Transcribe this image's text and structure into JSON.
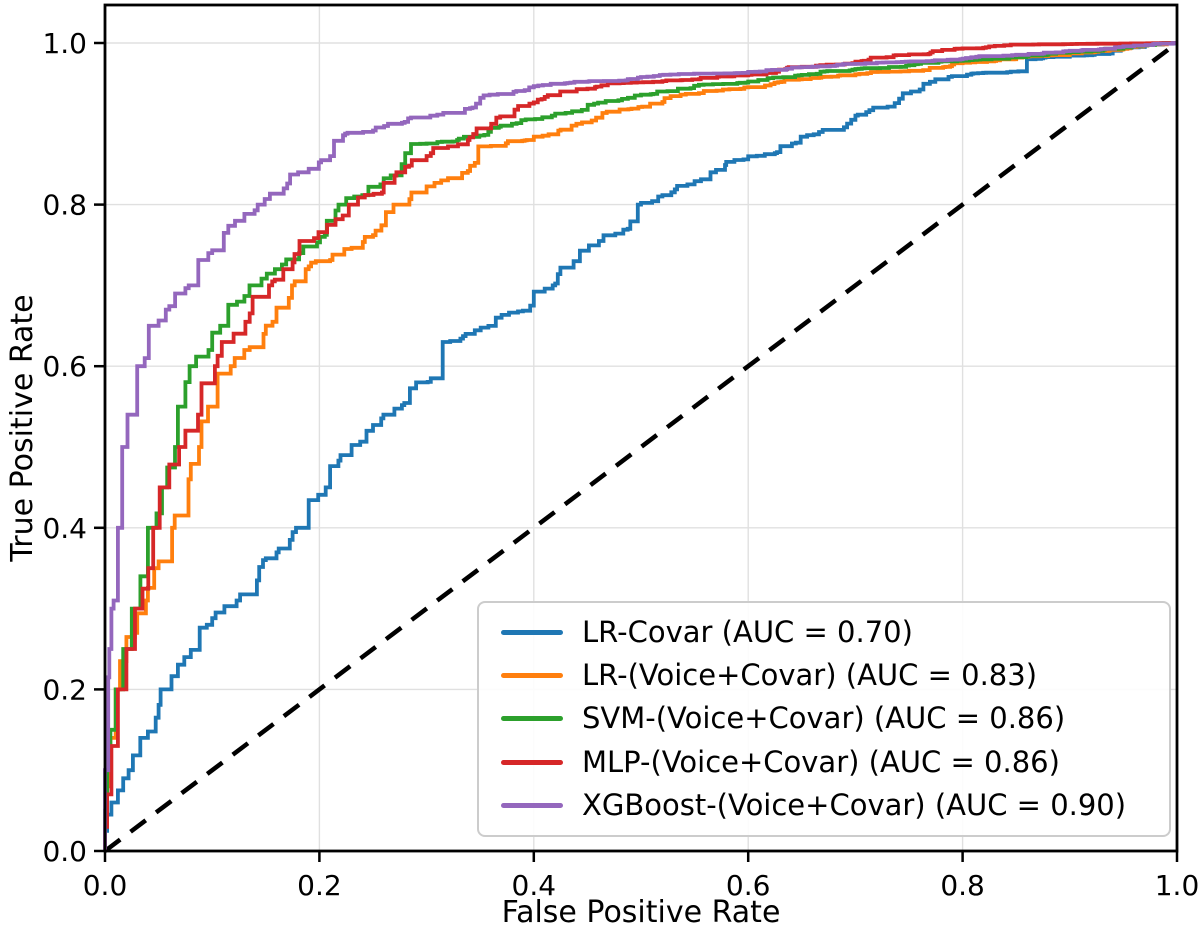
{
  "figure": {
    "background": "#ffffff",
    "text_color": "#000000",
    "grid_color": "#e0e0e0",
    "spine_color": "#000000"
  },
  "chart_data": {
    "type": "line",
    "subtype": "roc",
    "title": "",
    "xlabel": "False Positive Rate",
    "ylabel": "True Positive Rate",
    "xlim": [
      0.0,
      1.0
    ],
    "ylim": [
      0.0,
      1.05
    ],
    "grid": true,
    "legend_position": "lower right",
    "x_ticks": [
      "0.0",
      "0.2",
      "0.4",
      "0.6",
      "0.8",
      "1.0"
    ],
    "y_ticks": [
      "0.0",
      "0.2",
      "0.4",
      "0.6",
      "0.8",
      "1.0"
    ],
    "diagonal": {
      "from": [
        0,
        0
      ],
      "to": [
        1,
        1
      ],
      "style": "dashed",
      "color": "#000000"
    },
    "series": [
      {
        "name": "LR-Covar",
        "legend_label": "LR-Covar (AUC = 0.70)",
        "auc": 0.7,
        "color": "#1f77b4",
        "points": [
          [
            0,
            0
          ],
          [
            0.002,
            0.025
          ],
          [
            0.006,
            0.045
          ],
          [
            0.012,
            0.06
          ],
          [
            0.017,
            0.075
          ],
          [
            0.022,
            0.09
          ],
          [
            0.026,
            0.1
          ],
          [
            0.04,
            0.14
          ],
          [
            0.05,
            0.165
          ],
          [
            0.062,
            0.2
          ],
          [
            0.08,
            0.24
          ],
          [
            0.1,
            0.28
          ],
          [
            0.126,
            0.31
          ],
          [
            0.15,
            0.36
          ],
          [
            0.175,
            0.385
          ],
          [
            0.19,
            0.4
          ],
          [
            0.21,
            0.45
          ],
          [
            0.23,
            0.49
          ],
          [
            0.25,
            0.52
          ],
          [
            0.27,
            0.54
          ],
          [
            0.301,
            0.58
          ],
          [
            0.315,
            0.585
          ],
          [
            0.322,
            0.63
          ],
          [
            0.345,
            0.64
          ],
          [
            0.37,
            0.66
          ],
          [
            0.4,
            0.675
          ],
          [
            0.42,
            0.7
          ],
          [
            0.443,
            0.73
          ],
          [
            0.465,
            0.755
          ],
          [
            0.49,
            0.77
          ],
          [
            0.5,
            0.8
          ],
          [
            0.52,
            0.81
          ],
          [
            0.55,
            0.825
          ],
          [
            0.57,
            0.84
          ],
          [
            0.6,
            0.856
          ],
          [
            0.63,
            0.865
          ],
          [
            0.666,
            0.887
          ],
          [
            0.7,
            0.905
          ],
          [
            0.73,
            0.92
          ],
          [
            0.76,
            0.94
          ],
          [
            0.79,
            0.958
          ],
          [
            0.81,
            0.962
          ],
          [
            0.86,
            0.965
          ],
          [
            0.868,
            0.98
          ],
          [
            0.9,
            0.983
          ],
          [
            0.94,
            0.987
          ],
          [
            0.97,
            0.995
          ],
          [
            1,
            1
          ]
        ]
      },
      {
        "name": "LR-(Voice+Covar)",
        "legend_label": "LR-(Voice+Covar) (AUC = 0.83)",
        "auc": 0.83,
        "color": "#ff7f0e",
        "points": [
          [
            0,
            0
          ],
          [
            0.002,
            0.04
          ],
          [
            0.005,
            0.08
          ],
          [
            0.01,
            0.14
          ],
          [
            0.014,
            0.2
          ],
          [
            0.02,
            0.235
          ],
          [
            0.03,
            0.27
          ],
          [
            0.04,
            0.31
          ],
          [
            0.05,
            0.35
          ],
          [
            0.065,
            0.4
          ],
          [
            0.08,
            0.46
          ],
          [
            0.09,
            0.5
          ],
          [
            0.105,
            0.55
          ],
          [
            0.121,
            0.6
          ],
          [
            0.135,
            0.62
          ],
          [
            0.15,
            0.64
          ],
          [
            0.16,
            0.655
          ],
          [
            0.177,
            0.7
          ],
          [
            0.19,
            0.72
          ],
          [
            0.21,
            0.73
          ],
          [
            0.23,
            0.745
          ],
          [
            0.25,
            0.76
          ],
          [
            0.284,
            0.8
          ],
          [
            0.3,
            0.815
          ],
          [
            0.32,
            0.83
          ],
          [
            0.345,
            0.848
          ],
          [
            0.36,
            0.872
          ],
          [
            0.4,
            0.88
          ],
          [
            0.445,
            0.9
          ],
          [
            0.48,
            0.915
          ],
          [
            0.52,
            0.925
          ],
          [
            0.554,
            0.937
          ],
          [
            0.6,
            0.945
          ],
          [
            0.65,
            0.955
          ],
          [
            0.7,
            0.96
          ],
          [
            0.75,
            0.965
          ],
          [
            0.8,
            0.975
          ],
          [
            0.85,
            0.98
          ],
          [
            0.9,
            0.985
          ],
          [
            0.95,
            0.992
          ],
          [
            1,
            1
          ]
        ]
      },
      {
        "name": "SVM-(Voice+Covar)",
        "legend_label": "SVM-(Voice+Covar) (AUC = 0.86)",
        "auc": 0.86,
        "color": "#2ca02c",
        "points": [
          [
            0,
            0
          ],
          [
            0.002,
            0.05
          ],
          [
            0.005,
            0.1
          ],
          [
            0.01,
            0.15
          ],
          [
            0.017,
            0.2
          ],
          [
            0.025,
            0.25
          ],
          [
            0.033,
            0.3
          ],
          [
            0.04,
            0.34
          ],
          [
            0.048,
            0.4
          ],
          [
            0.058,
            0.45
          ],
          [
            0.068,
            0.5
          ],
          [
            0.075,
            0.55
          ],
          [
            0.085,
            0.6
          ],
          [
            0.1,
            0.62
          ],
          [
            0.115,
            0.65
          ],
          [
            0.13,
            0.68
          ],
          [
            0.146,
            0.7
          ],
          [
            0.165,
            0.72
          ],
          [
            0.185,
            0.74
          ],
          [
            0.205,
            0.76
          ],
          [
            0.215,
            0.78
          ],
          [
            0.225,
            0.8
          ],
          [
            0.24,
            0.81
          ],
          [
            0.26,
            0.825
          ],
          [
            0.28,
            0.85
          ],
          [
            0.294,
            0.875
          ],
          [
            0.33,
            0.88
          ],
          [
            0.36,
            0.89
          ],
          [
            0.384,
            0.9
          ],
          [
            0.42,
            0.91
          ],
          [
            0.46,
            0.925
          ],
          [
            0.5,
            0.935
          ],
          [
            0.554,
            0.947
          ],
          [
            0.6,
            0.951
          ],
          [
            0.65,
            0.96
          ],
          [
            0.7,
            0.967
          ],
          [
            0.75,
            0.972
          ],
          [
            0.8,
            0.978
          ],
          [
            0.85,
            0.982
          ],
          [
            0.9,
            0.988
          ],
          [
            0.95,
            0.993
          ],
          [
            1,
            1
          ]
        ]
      },
      {
        "name": "MLP-(Voice+Covar)",
        "legend_label": "MLP-(Voice+Covar) (AUC = 0.86)",
        "auc": 0.86,
        "color": "#d62728",
        "points": [
          [
            0,
            0
          ],
          [
            0.002,
            0.03
          ],
          [
            0.006,
            0.07
          ],
          [
            0.012,
            0.13
          ],
          [
            0.02,
            0.2
          ],
          [
            0.028,
            0.25
          ],
          [
            0.035,
            0.3
          ],
          [
            0.045,
            0.35
          ],
          [
            0.051,
            0.4
          ],
          [
            0.06,
            0.45
          ],
          [
            0.075,
            0.5
          ],
          [
            0.09,
            0.54
          ],
          [
            0.105,
            0.6
          ],
          [
            0.12,
            0.63
          ],
          [
            0.135,
            0.655
          ],
          [
            0.156,
            0.7
          ],
          [
            0.175,
            0.72
          ],
          [
            0.195,
            0.755
          ],
          [
            0.215,
            0.775
          ],
          [
            0.236,
            0.8
          ],
          [
            0.26,
            0.815
          ],
          [
            0.28,
            0.84
          ],
          [
            0.3,
            0.855
          ],
          [
            0.32,
            0.87
          ],
          [
            0.34,
            0.88
          ],
          [
            0.365,
            0.9
          ],
          [
            0.4,
            0.925
          ],
          [
            0.44,
            0.94
          ],
          [
            0.48,
            0.95
          ],
          [
            0.52,
            0.952
          ],
          [
            0.554,
            0.955
          ],
          [
            0.6,
            0.96
          ],
          [
            0.65,
            0.97
          ],
          [
            0.7,
            0.975
          ],
          [
            0.75,
            0.985
          ],
          [
            0.8,
            0.993
          ],
          [
            0.85,
            0.998
          ],
          [
            0.92,
            0.999
          ],
          [
            1,
            1
          ]
        ]
      },
      {
        "name": "XGBoost-(Voice+Covar)",
        "legend_label": "XGBoost-(Voice+Covar) (AUC = 0.90)",
        "auc": 0.9,
        "color": "#9467bd",
        "points": [
          [
            0,
            0
          ],
          [
            0.003,
            0.1
          ],
          [
            0.004,
            0.215
          ],
          [
            0.006,
            0.25
          ],
          [
            0.008,
            0.3
          ],
          [
            0.012,
            0.31
          ],
          [
            0.016,
            0.4
          ],
          [
            0.021,
            0.5
          ],
          [
            0.03,
            0.54
          ],
          [
            0.037,
            0.6
          ],
          [
            0.05,
            0.65
          ],
          [
            0.06,
            0.67
          ],
          [
            0.075,
            0.69
          ],
          [
            0.087,
            0.7
          ],
          [
            0.1,
            0.74
          ],
          [
            0.115,
            0.765
          ],
          [
            0.13,
            0.78
          ],
          [
            0.149,
            0.8
          ],
          [
            0.17,
            0.82
          ],
          [
            0.19,
            0.84
          ],
          [
            0.21,
            0.855
          ],
          [
            0.222,
            0.879
          ],
          [
            0.25,
            0.89
          ],
          [
            0.277,
            0.9
          ],
          [
            0.31,
            0.91
          ],
          [
            0.35,
            0.925
          ],
          [
            0.4,
            0.945
          ],
          [
            0.45,
            0.952
          ],
          [
            0.5,
            0.957
          ],
          [
            0.554,
            0.962
          ],
          [
            0.6,
            0.963
          ],
          [
            0.65,
            0.97
          ],
          [
            0.7,
            0.974
          ],
          [
            0.75,
            0.977
          ],
          [
            0.8,
            0.98
          ],
          [
            0.85,
            0.985
          ],
          [
            0.9,
            0.99
          ],
          [
            0.95,
            0.995
          ],
          [
            1,
            1
          ]
        ]
      }
    ]
  }
}
